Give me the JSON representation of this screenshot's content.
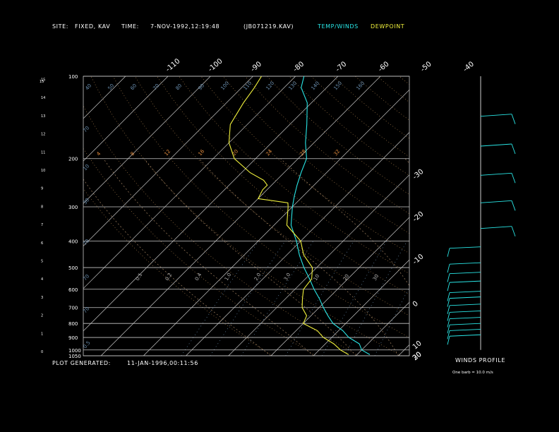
{
  "header": {
    "site_label": "SITE:",
    "site_value": "FIXED, KAV",
    "time_label": "TIME:",
    "time_value": "7-NOV-1992,12:19:48",
    "file_id": "(JB071219.KAV)",
    "legend_temp": "TEMP/WINDS",
    "legend_dew": "DEWPOINT"
  },
  "footer": {
    "plot_label": "PLOT GENERATED:",
    "plot_value": "11-JAN-1996,00:11:56"
  },
  "winds": {
    "title": "WINDS PROFILE",
    "note": "One barb = 10.0 m/s"
  },
  "colors": {
    "temp": "#29e6e6",
    "dew": "#f2f23c",
    "grid": "#c8c8c8",
    "dry_adiabat": "#a07848",
    "moist_adiabat": "#a08060",
    "mixing": "#6a8fb0",
    "background": "#000000"
  },
  "chart_data": {
    "type": "line",
    "subtype": "skew-t log-p",
    "pressure_levels": [
      100,
      200,
      300,
      400,
      500,
      600,
      700,
      800,
      900,
      1000,
      1050
    ],
    "height_km_ticks": [
      "0",
      "1",
      "2",
      "3",
      "4",
      "5",
      "6",
      "7",
      "8",
      "9",
      "10",
      "11",
      "12",
      "13",
      "14",
      "15"
    ],
    "temperature_ticks": [
      "-110",
      "-100",
      "-90",
      "-80",
      "-70",
      "-60",
      "-50",
      "-40",
      "-30",
      "-20",
      "-10",
      "0",
      "10",
      "20",
      "30"
    ],
    "isotherms_c": [
      -150,
      -140,
      -130,
      -120,
      -110,
      -100,
      -90,
      -80,
      -70,
      -60,
      -50,
      -40,
      -30,
      -20,
      -10,
      0,
      10,
      20,
      30,
      40
    ],
    "theta_labels_row100": [
      "40",
      "50",
      "60",
      "70",
      "80",
      "90",
      "100",
      "110",
      "120",
      "130",
      "140",
      "150",
      "160"
    ],
    "theta_labels_row200": [
      "4",
      "8",
      "12",
      "16",
      "20",
      "24",
      "28",
      "32"
    ],
    "mixing_labels": [
      "0.1",
      "0.2",
      "0.4",
      "1.0",
      "2.0",
      "3.0",
      "10",
      "20",
      "30"
    ],
    "side_labels": [
      "70",
      "10",
      "30",
      "70",
      "70",
      "70",
      "0.5"
    ],
    "temp_profile": [
      [
        1040,
        3
      ],
      [
        1000,
        0
      ],
      [
        950,
        -2
      ],
      [
        900,
        -6
      ],
      [
        850,
        -9
      ],
      [
        800,
        -13
      ],
      [
        750,
        -16
      ],
      [
        700,
        -19
      ],
      [
        650,
        -22
      ],
      [
        600,
        -25.5
      ],
      [
        550,
        -29
      ],
      [
        500,
        -33
      ],
      [
        450,
        -37
      ],
      [
        400,
        -41
      ],
      [
        350,
        -46
      ],
      [
        300,
        -50
      ],
      [
        275,
        -52
      ],
      [
        250,
        -54
      ],
      [
        225,
        -56
      ],
      [
        200,
        -58
      ],
      [
        175,
        -62
      ],
      [
        150,
        -66
      ],
      [
        125,
        -71
      ],
      [
        110,
        -76
      ],
      [
        100,
        -78
      ]
    ],
    "dew_profile": [
      [
        1040,
        -2
      ],
      [
        1000,
        -5
      ],
      [
        950,
        -8
      ],
      [
        900,
        -12
      ],
      [
        850,
        -15
      ],
      [
        800,
        -20
      ],
      [
        750,
        -21
      ],
      [
        700,
        -24
      ],
      [
        650,
        -26
      ],
      [
        600,
        -28
      ],
      [
        550,
        -28.5
      ],
      [
        500,
        -31
      ],
      [
        450,
        -36
      ],
      [
        400,
        -40
      ],
      [
        350,
        -47
      ],
      [
        300,
        -51
      ],
      [
        290,
        -52
      ],
      [
        280,
        -60
      ],
      [
        260,
        -61
      ],
      [
        250,
        -61
      ],
      [
        240,
        -63
      ],
      [
        225,
        -68
      ],
      [
        200,
        -75
      ],
      [
        175,
        -80
      ],
      [
        150,
        -84
      ],
      [
        125,
        -86
      ],
      [
        110,
        -87
      ],
      [
        100,
        -88
      ]
    ],
    "wind_barbs_p_hPa": [
      140,
      180,
      230,
      290,
      360,
      420,
      480,
      520,
      560,
      610,
      640,
      680,
      720,
      760,
      800,
      840,
      880
    ],
    "xlabel": "",
    "ylabel": ""
  }
}
